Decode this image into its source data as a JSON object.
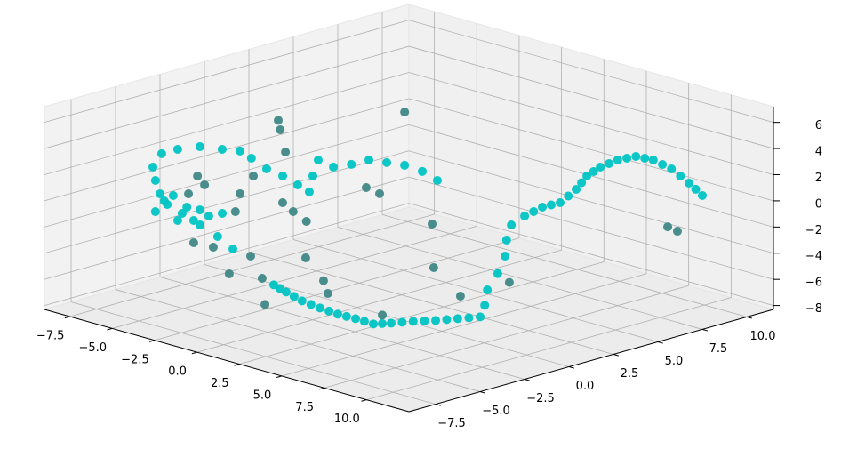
{
  "chart_data": {
    "type": "scatter3d",
    "xlim": [
      -9,
      12.5
    ],
    "ylim": [
      -9,
      11.5
    ],
    "zlim": [
      -8.3,
      7.2
    ],
    "xticks": [
      {
        "value": -7.5,
        "label": "−7.5"
      },
      {
        "value": -5,
        "label": "−5.0"
      },
      {
        "value": -2.5,
        "label": "−2.5"
      },
      {
        "value": 0,
        "label": "0.0"
      },
      2.5,
      {
        "value": 5,
        "label": "5.0"
      },
      7.5,
      {
        "value": 10,
        "label": "10.0"
      }
    ],
    "yticks": [
      {
        "value": -7.5,
        "label": "−7.5"
      },
      {
        "value": -5,
        "label": "−5.0"
      },
      {
        "value": -2.5,
        "label": "−2.5"
      },
      {
        "value": 0,
        "label": "0.0"
      },
      2.5,
      {
        "value": 5,
        "label": "5.0"
      },
      7.5,
      {
        "value": 10,
        "label": "10.0"
      }
    ],
    "zticks": [
      {
        "value": -8,
        "label": "−8"
      },
      {
        "value": -6,
        "label": "−6"
      },
      {
        "value": -4,
        "label": "−4"
      },
      {
        "value": -2,
        "label": "−2"
      },
      0,
      2,
      4,
      6
    ],
    "grid": true,
    "series": [
      {
        "color": "#00c4c4",
        "x": [
          11.22,
          9.52,
          7.51,
          6.04,
          5.15,
          4.99,
          5.22,
          5.76,
          6.85,
          7.78,
          7.72,
          8.13,
          6.55,
          5.86,
          5.37,
          5.96,
          6.27,
          6.71,
          7.79,
          7.32,
          6.86,
          6.29,
          5.83,
          5.39,
          4.31,
          3.31,
          2.14,
          0.86,
          -0.54,
          -1.66,
          0.86,
          -0.9,
          -2.63,
          -4.38,
          -5.75,
          -4.95,
          -5.42,
          -6.9,
          -8.05,
          -8.04,
          -7.66,
          -6.73,
          -6.02,
          -4.93,
          -3.36,
          -2.14,
          -0.76,
          0.32,
          -1.25,
          -2.77,
          -1.58,
          -1.33,
          -1.28,
          -0.48,
          0.33,
          1.5,
          2.89,
          -6.21,
          -6.51,
          -4.89,
          -4.22,
          -3.29,
          -3.76,
          -3.31,
          -5.35,
          -3.2,
          10.37,
          8.52,
          6.78,
          5.6,
          5.07,
          5.11,
          5.49,
          6.31,
          7.32,
          7.75,
          7.93,
          7.56,
          7.09,
          6.58,
          6.06,
          5.61,
          4.85,
          3.81,
          2.73,
          1.5,
          0.16,
          -1.1
        ],
        "y": [
          8.72,
          9.59,
          10.52,
          10.9,
          10.77,
          9.9,
          8.7,
          7.43,
          5.79,
          4.0,
          3.06,
          1.67,
          2.43,
          2.82,
          3.2,
          2.23,
          1.35,
          0.78,
          -0.51,
          -1.32,
          -2.12,
          -2.84,
          -3.64,
          -4.22,
          -4.19,
          -4.24,
          -4.12,
          -3.91,
          -3.47,
          -3.1,
          -7.8,
          -6.98,
          -6.32,
          -5.66,
          -5.19,
          -6.36,
          -6.17,
          -4.9,
          -3.31,
          -2.42,
          -1.53,
          -1.17,
          -0.84,
          -1.24,
          -1.88,
          -2.14,
          -2.61,
          -2.99,
          -1.29,
          0.46,
          0.18,
          0.95,
          1.89,
          2.13,
          2.36,
          2.24,
          1.76,
          -4.92,
          -4.13,
          -4.91,
          -4.81,
          -6.05,
          -6.5,
          -5.18,
          -6.24,
          -4.53,
          9.16,
          10.06,
          10.71,
          10.84,
          10.34,
          9.3,
          8.07,
          6.61,
          4.9,
          3.53,
          2.37,
          -0.92,
          -1.72,
          -2.48,
          -3.24,
          -3.93,
          -4.21,
          -4.22,
          -4.18,
          -4.02,
          -3.69,
          -3.29
        ],
        "z": [
          1.0,
          1.0,
          1.0,
          1.0,
          1.0,
          1.0,
          1.0,
          1.0,
          1.0,
          1.0,
          1.0,
          1.0,
          -0.55,
          -2.1,
          -3.65,
          -4.4,
          -5.2,
          -6.0,
          -6.0,
          -6.0,
          -6.0,
          -6.0,
          -6.0,
          -6.0,
          -6.0,
          -6.0,
          -6.0,
          -6.0,
          -6.0,
          -6.0,
          -0.55,
          -0.55,
          -0.55,
          -0.55,
          -0.55,
          1.0,
          1.78,
          1.78,
          1.78,
          1.78,
          1.78,
          1.78,
          1.78,
          1.78,
          1.78,
          1.78,
          1.78,
          1.78,
          1.78,
          1.78,
          1.78,
          1.78,
          1.78,
          1.78,
          1.78,
          1.78,
          1.78,
          -0.55,
          -0.55,
          -0.55,
          -0.55,
          -0.55,
          -0.55,
          -0.55,
          -0.55,
          -0.55,
          1.0,
          1.0,
          1.0,
          1.0,
          1.0,
          1.0,
          1.0,
          1.0,
          1.0,
          1.0,
          1.0,
          -6.0,
          -6.0,
          -6.0,
          -6.0,
          -6.0,
          -6.0,
          -6.0,
          -6.0,
          -6.0,
          -6.0,
          -6.0
        ]
      },
      {
        "color": "#3f8787",
        "x": [
          -2.08,
          -6.03,
          -6.01,
          -5.65,
          -1.66,
          -0.62,
          4.11,
          4.48,
          6.13,
          7.23,
          10.28,
          11.03,
          4.72,
          1.94,
          1.57,
          -0.32,
          0.14,
          -1.59,
          -2.13,
          -3.03,
          0.13,
          -1.29,
          -2.53,
          -4.73,
          -2.99,
          0.09,
          -0.95,
          -5.72,
          -4.58,
          -4.11,
          -4.07
        ],
        "y": [
          4.66,
          1.32,
          1.41,
          1.36,
          2.1,
          1.86,
          0.3,
          0.04,
          -0.03,
          1.67,
          7.67,
          7.5,
          -3.08,
          -3.49,
          -3.38,
          -2.58,
          -5.31,
          -3.82,
          -3.95,
          -4.3,
          -2.97,
          -2.36,
          -1.77,
          -2.07,
          -3.99,
          -8.17,
          -8.28,
          -3.52,
          -4.21,
          -5.56,
          -1.95
        ],
        "z": [
          4.1,
          3.3,
          2.55,
          1.0,
          -0.55,
          -0.55,
          -0.55,
          -3.65,
          -5.2,
          -4.4,
          -1.33,
          -1.33,
          -6.0,
          -5.2,
          -4.4,
          -3.65,
          -6.0,
          -5.2,
          -3.65,
          -5.2,
          -0.55,
          -0.55,
          -0.55,
          -0.55,
          -0.55,
          -0.55,
          -0.55,
          1.0,
          1.0,
          1.0,
          1.0
        ]
      }
    ]
  }
}
